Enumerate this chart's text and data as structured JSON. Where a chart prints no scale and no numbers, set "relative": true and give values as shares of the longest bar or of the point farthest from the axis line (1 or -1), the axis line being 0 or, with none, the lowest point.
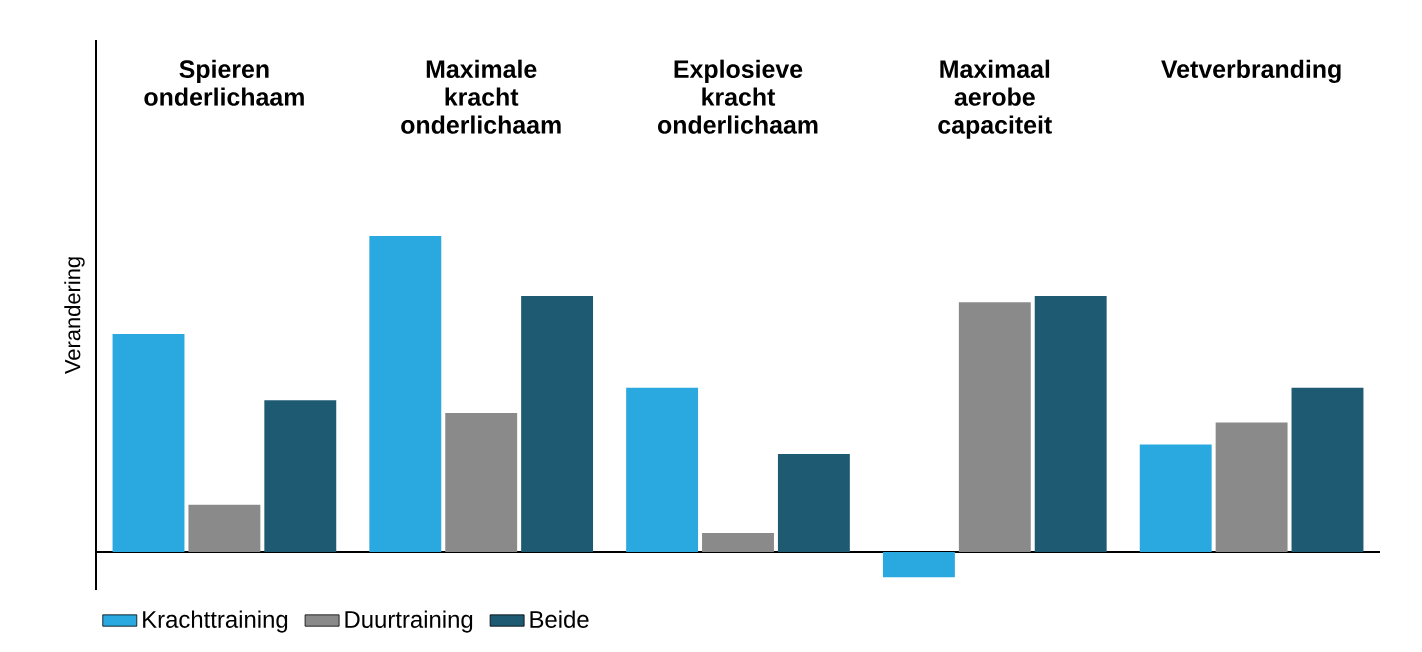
{
  "chart_data": {
    "type": "bar",
    "relative": true,
    "ylabel": "Verandering",
    "categories": [
      "Spieren onderlichaam",
      "Maximale kracht onderlichaam",
      "Explosieve kracht onderlichaam",
      "Maximaal aerobe capaciteit",
      "Vetverbranding"
    ],
    "series": [
      {
        "name": "Krachttraining",
        "color": "#29a9e0",
        "values": [
          0.69,
          1,
          0.52,
          -0.08,
          0.34
        ]
      },
      {
        "name": "Duurtraining",
        "color": "#8a8a8a",
        "values": [
          0.15,
          0.44,
          0.06,
          0.79,
          0.41
        ]
      },
      {
        "name": "Beide",
        "color": "#1f5a73",
        "values": [
          0.48,
          0.81,
          0.31,
          0.81,
          0.52
        ]
      }
    ],
    "legend": "bottom left"
  }
}
